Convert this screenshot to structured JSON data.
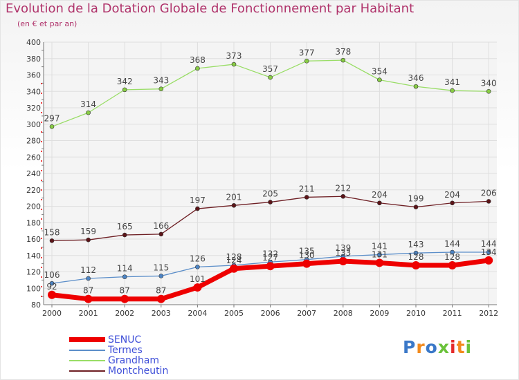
{
  "chart_data": {
    "type": "line",
    "title": "Evolution de la Dotation Globale de Fonctionnement par Habitant",
    "subtitle": "(en € et par an)",
    "xlabel": "",
    "ylabel": "",
    "categories": [
      "2000",
      "2001",
      "2002",
      "2003",
      "2004",
      "2005",
      "2006",
      "2007",
      "2008",
      "2009",
      "2010",
      "2011",
      "2012"
    ],
    "ylim": [
      80,
      400
    ],
    "yticks": [
      80,
      100,
      120,
      140,
      160,
      180,
      200,
      220,
      240,
      260,
      280,
      300,
      320,
      340,
      360,
      380,
      400
    ],
    "grid": true,
    "legend_position": "bottom-left",
    "series": [
      {
        "name": "SENUC",
        "color": "#ee0000",
        "values": [
          92,
          87,
          87,
          87,
          101,
          124,
          127,
          130,
          133,
          131,
          128,
          128,
          134
        ]
      },
      {
        "name": "Termes",
        "color": "#5b8ec9",
        "values": [
          106,
          112,
          114,
          115,
          126,
          128,
          132,
          135,
          139,
          141,
          143,
          144,
          144
        ]
      },
      {
        "name": "Grandham",
        "color": "#99dd66",
        "values": [
          297,
          314,
          342,
          343,
          368,
          373,
          357,
          377,
          378,
          354,
          346,
          341,
          340
        ]
      },
      {
        "name": "Montcheutin",
        "color": "#6e1f24",
        "values": [
          158,
          159,
          165,
          166,
          197,
          201,
          205,
          211,
          212,
          204,
          199,
          204,
          206
        ]
      }
    ]
  },
  "logo": {
    "text": "Proxiti",
    "letter_colors": [
      "#3a78c8",
      "#f28a1e",
      "#3a78c8",
      "#6ac23a",
      "#e52b2b",
      "#f28a1e",
      "#6ac23a"
    ]
  }
}
